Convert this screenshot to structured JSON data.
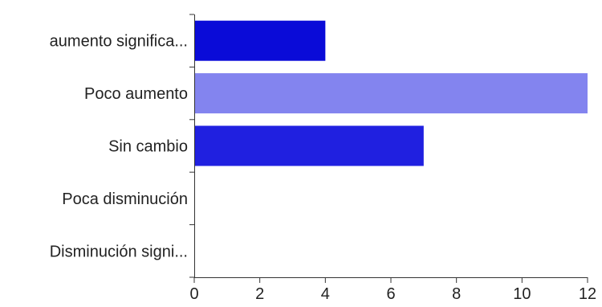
{
  "chart_data": {
    "type": "bar",
    "orientation": "horizontal",
    "categories": [
      "aumento significa...",
      "Poco aumento",
      "Sin cambio",
      "Poca disminución",
      "Disminución signi..."
    ],
    "values": [
      4,
      12,
      7,
      0,
      0
    ],
    "bar_colors": [
      "#0a0bd8",
      "#8384ef",
      "#2020e0",
      "#0a0bd8",
      "#0a0bd8"
    ],
    "xlim": [
      0,
      12
    ],
    "xticks": [
      "0",
      "2",
      "4",
      "6",
      "8",
      "10",
      "12"
    ],
    "title": "",
    "xlabel": "",
    "ylabel": "",
    "grid": false,
    "legend": "none"
  }
}
